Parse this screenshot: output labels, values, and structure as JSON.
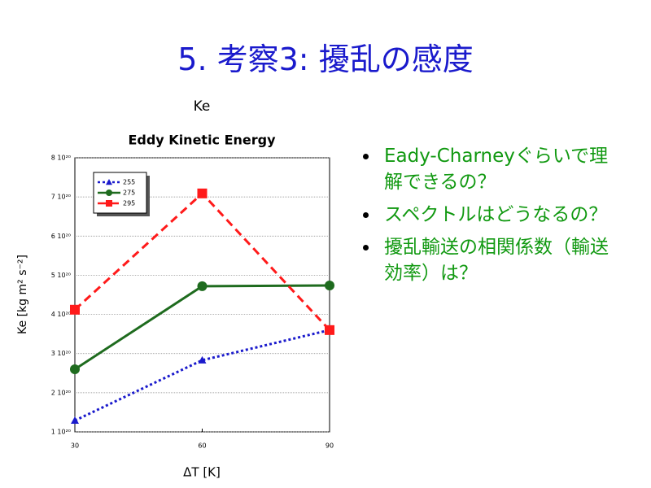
{
  "slide": {
    "title": "5. 考察3: 擾乱の感度",
    "bullets": [
      "Eady-Charneyぐらいで理解できるの？",
      "スペクトルはどうなるの？",
      "擾乱輸送の相関係数（輸送効率）は？"
    ]
  },
  "chart_data": {
    "type": "line",
    "supertitle": "Ke",
    "title": "Eddy Kinetic Energy",
    "xlabel": "ΔT [K]",
    "ylabel": "Ke [kg m² s⁻²]",
    "x": [
      30,
      60,
      90
    ],
    "series": [
      {
        "name": "255",
        "color": "#1a1acc",
        "dash": "dotted",
        "marker": "triangle",
        "values": [
          1.29e+20,
          2.83e+20,
          3.6e+20
        ]
      },
      {
        "name": "275",
        "color": "#1e6b1e",
        "dash": "solid",
        "marker": "circle",
        "values": [
          2.6e+20,
          4.72e+20,
          4.74e+20
        ]
      },
      {
        "name": "295",
        "color": "#ff1a1a",
        "dash": "dashed",
        "marker": "square",
        "values": [
          4.12e+20,
          7.09e+20,
          3.6e+20
        ]
      }
    ],
    "xlim": [
      30,
      90
    ],
    "xticks": [
      30,
      60,
      90
    ],
    "ylim": [
      1e+20,
      8e+20
    ],
    "yticks": [
      {
        "value": 1e+20,
        "label": "1 10²⁰"
      },
      {
        "value": 2e+20,
        "label": "2 10²⁰"
      },
      {
        "value": 3e+20,
        "label": "3 10²⁰"
      },
      {
        "value": 4e+20,
        "label": "4 10²⁰"
      },
      {
        "value": 5e+20,
        "label": "5 10²⁰"
      },
      {
        "value": 6e+20,
        "label": "6 10²⁰"
      },
      {
        "value": 7e+20,
        "label": "7 10²⁰"
      },
      {
        "value": 8e+20,
        "label": "8 10²⁰"
      }
    ],
    "grid": true,
    "legend": "upper left"
  }
}
